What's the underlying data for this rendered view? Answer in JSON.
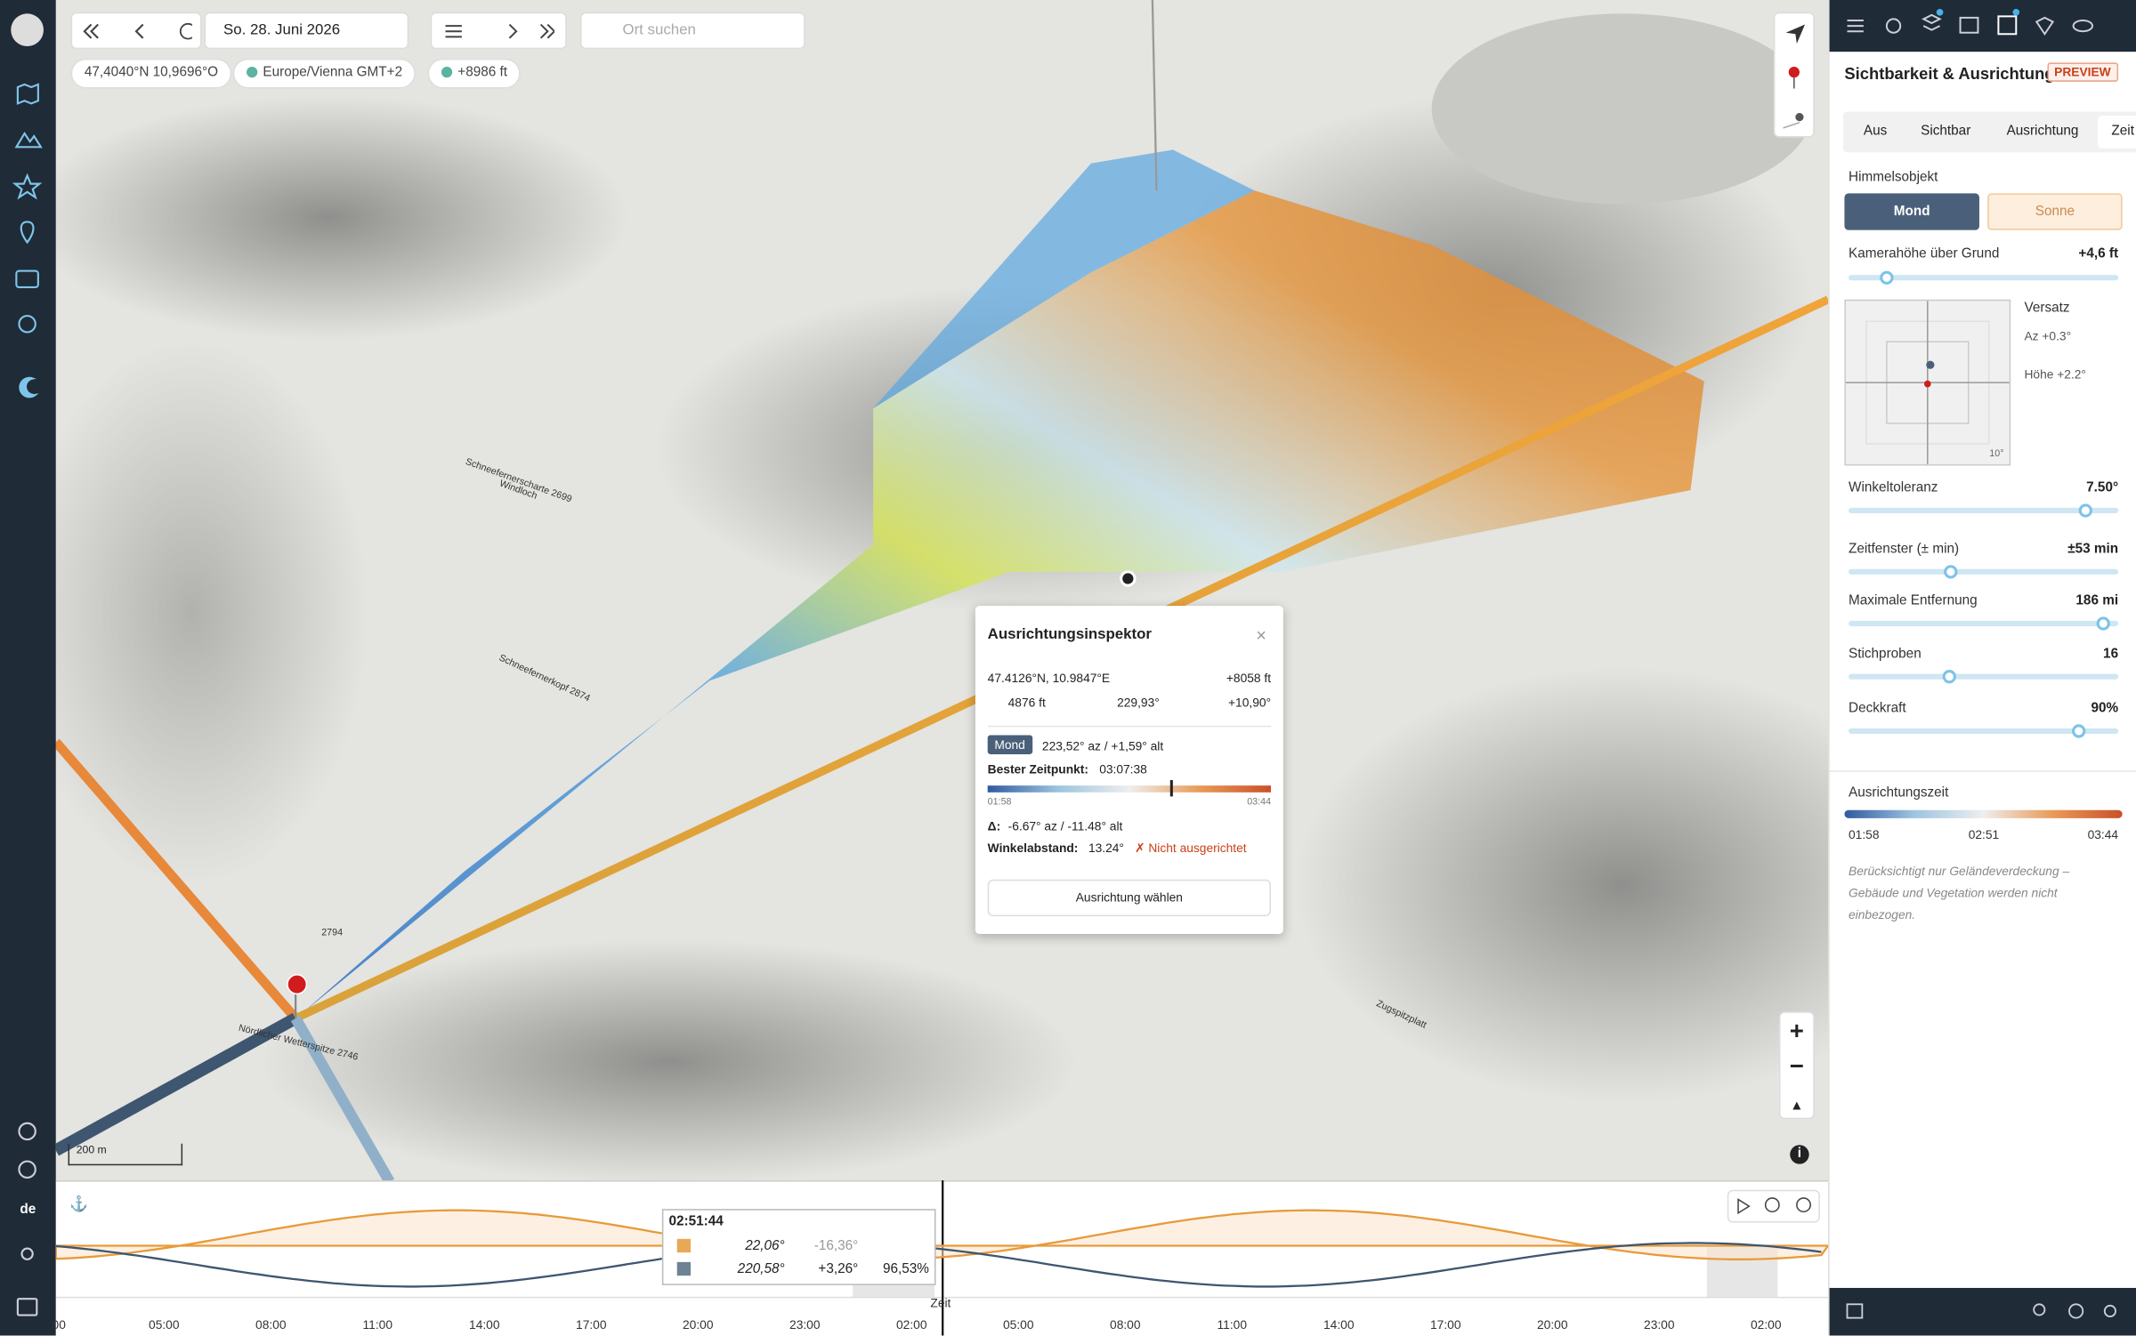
{
  "toolbar": {
    "date": "So. 28. Juni 2026",
    "search_placeholder": "Ort suchen",
    "coordinates": "47,4040°N 10,9696°O",
    "timezone": "Europe/Vienna  GMT+2",
    "elevation": "+8986 ft"
  },
  "sidebar": {
    "language": "de"
  },
  "map": {
    "labels": [
      "Schneefernerscharte 2699",
      "Schneefernerkopf 2874",
      "2794",
      "Nördlicher Wetterspitze 2746",
      "Zugspitzplatt",
      "Windloch"
    ],
    "scale": "200 m"
  },
  "inspector": {
    "title": "Ausrichtungsinspektor",
    "position": "47.4126°N, 10.9847°E",
    "elevation": "+8058 ft",
    "distance": "4876 ft",
    "bearing": "229,93°",
    "slope": "+10,90°",
    "object": "Mond",
    "object_position": "223,52° az / +1,59° alt",
    "best_time_label": "Bester Zeitpunkt:",
    "best_time": "03:07:38",
    "range_start": "01:58",
    "range_end": "03:44",
    "delta_label": "Δ:",
    "delta": "-6.67° az / -11.48° alt",
    "distance_label": "Winkelabstand:",
    "angle_distance": "13.24°",
    "status": "✗ Nicht ausgerichtet",
    "button": "Ausrichtung wählen"
  },
  "panel": {
    "title": "Sichtbarkeit & Ausrichtung",
    "badge": "PREVIEW",
    "tabs": [
      "Aus",
      "Sichtbar",
      "Ausrichtung",
      "Zeit"
    ],
    "sky_object_label": "Himmelsobjekt",
    "sky_objects": [
      "Mond",
      "Sonne"
    ],
    "camera_height_label": "Kamerahöhe über Grund",
    "camera_height": "+4,6 ft",
    "offset_label": "Versatz",
    "offset_az": "Az +0.3°",
    "offset_alt": "Höhe +2.2°",
    "offset_scale": "10°",
    "sliders": [
      {
        "label": "Winkeltoleranz",
        "value": "7.50°"
      },
      {
        "label": "Zeitfenster (± min)",
        "value": "±53 min"
      },
      {
        "label": "Maximale Entfernung",
        "value": "186 mi"
      },
      {
        "label": "Stichproben",
        "value": "16"
      },
      {
        "label": "Deckkraft",
        "value": "90%"
      }
    ],
    "time_label": "Ausrichtungszeit",
    "time_ticks": [
      "01:58",
      "02:51",
      "03:44"
    ],
    "note": "Berücksichtigt nur Geländeverdeckung – Gebäude und Vegetation werden nicht einbezogen."
  },
  "timeline": {
    "tooltip_time": "02:51:44",
    "rows": [
      [
        "22,06°",
        "-16,36°",
        ""
      ],
      [
        "220,58°",
        "+3,26°",
        "96,53%"
      ]
    ],
    "axis_label": "Zeit",
    "ticks": [
      ":00",
      "05:00",
      "08:00",
      "11:00",
      "14:00",
      "17:00",
      "20:00",
      "23:00",
      "02:00",
      "05:00",
      "08:00",
      "11:00",
      "14:00",
      "17:00",
      "20:00",
      "23:00",
      "02:00"
    ]
  }
}
